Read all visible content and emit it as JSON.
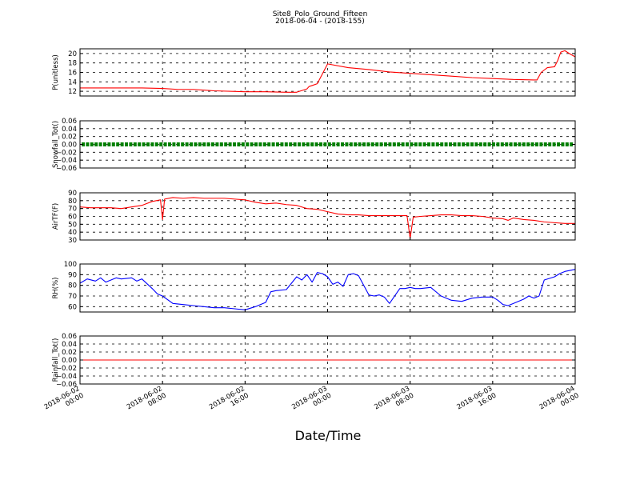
{
  "chart_data": {
    "type": "line",
    "title": "Site8_Polo_Ground_Fifteen",
    "subtitle": "2018-06-04 - (2018-155)",
    "xlabel": "Date/Time",
    "xlim_hours": [
      0,
      48
    ],
    "x_ticks": [
      {
        "line1": "2018-06-02",
        "line2": "00:00"
      },
      {
        "line1": "2018-06-02",
        "line2": "08:00"
      },
      {
        "line1": "2018-06-02",
        "line2": "16:00"
      },
      {
        "line1": "2018-06-03",
        "line2": "00:00"
      },
      {
        "line1": "2018-06-03",
        "line2": "08:00"
      },
      {
        "line1": "2018-06-03",
        "line2": "16:00"
      },
      {
        "line1": "2018-06-04",
        "line2": "00:00"
      }
    ],
    "panels": [
      {
        "id": "p",
        "ylabel": "P(unitless)",
        "ylim": [
          11,
          21
        ],
        "yticks": [
          12,
          14,
          16,
          18,
          20
        ],
        "ytick_labels": [
          "12",
          "14",
          "16",
          "18",
          "20"
        ],
        "color": "#ff0000",
        "marker": "none",
        "x": [
          0,
          3,
          6,
          8,
          9.5,
          11,
          13,
          16,
          18,
          20,
          21,
          22,
          22.2,
          22.6,
          23,
          24,
          26,
          28,
          30,
          32,
          34,
          36,
          38,
          40,
          42,
          44,
          44.3,
          44.7,
          45.3,
          46,
          46.3,
          46.6,
          47,
          47.5,
          48
        ],
        "y": [
          12.7,
          12.7,
          12.7,
          12.6,
          12.4,
          12.4,
          12.1,
          11.9,
          11.9,
          11.8,
          11.8,
          12.5,
          13.0,
          13.3,
          13.6,
          17.8,
          17.0,
          16.6,
          16.1,
          15.8,
          15.5,
          15.2,
          14.9,
          14.7,
          14.5,
          14.4,
          14.4,
          16.0,
          17.0,
          17.2,
          18.5,
          20.3,
          20.6,
          19.9,
          19.3
        ]
      },
      {
        "id": "snowfall",
        "ylabel": "Snowfall_Tot()",
        "ylim": [
          -0.06,
          0.06
        ],
        "yticks": [
          -0.06,
          -0.04,
          -0.02,
          0,
          0.02,
          0.04,
          0.06
        ],
        "ytick_labels": [
          "−0.06",
          "−0.04",
          "−0.02",
          "0.00",
          "0.02",
          "0.04",
          "0.06"
        ],
        "color": "#008000",
        "marker": "dots",
        "x": [
          0,
          48
        ],
        "y": [
          0,
          0
        ]
      },
      {
        "id": "airtf",
        "ylabel": "AirTF(F)",
        "ylim": [
          30,
          90
        ],
        "yticks": [
          30,
          40,
          50,
          60,
          70,
          80,
          90
        ],
        "ytick_labels": [
          "30",
          "40",
          "50",
          "60",
          "70",
          "80",
          "90"
        ],
        "color": "#ff0000",
        "marker": "none",
        "x": [
          0,
          1,
          2,
          3,
          4,
          5,
          6,
          7,
          7.8,
          8,
          8.2,
          9,
          10,
          11,
          12,
          13,
          14,
          15,
          16,
          17,
          18,
          19,
          20,
          21,
          22,
          23,
          24,
          25,
          26,
          27,
          28,
          29,
          30,
          31,
          31.7,
          32,
          32.3,
          33,
          34,
          35,
          36,
          37,
          38,
          39,
          40,
          41,
          41.5,
          42,
          43,
          44,
          45,
          46,
          47,
          48
        ],
        "y": [
          72,
          71,
          71,
          71,
          70,
          72,
          74,
          79,
          81,
          56,
          82,
          84,
          83,
          84,
          83,
          83,
          83,
          82,
          81,
          78,
          76,
          77,
          75,
          74,
          70,
          69,
          66,
          63,
          62,
          62,
          61,
          61,
          61,
          61,
          61,
          32,
          59,
          60,
          61,
          62,
          62,
          61,
          61,
          60,
          58,
          57,
          55,
          58,
          56,
          55,
          53,
          52,
          51,
          51
        ]
      },
      {
        "id": "rh",
        "ylabel": "RH(%)",
        "ylim": [
          55,
          100
        ],
        "yticks": [
          60,
          70,
          80,
          90,
          100
        ],
        "ytick_labels": [
          "60",
          "70",
          "80",
          "90",
          "100"
        ],
        "color": "#0000ff",
        "marker": "none",
        "x": [
          0,
          0.7,
          1.5,
          2,
          2.5,
          3,
          3.5,
          4,
          5,
          5.5,
          6,
          7,
          7.5,
          8,
          9,
          10,
          11,
          12,
          13,
          14,
          15,
          16,
          17,
          18,
          18.5,
          19,
          20,
          21,
          21.5,
          22,
          22.5,
          23,
          23.5,
          24,
          24.5,
          25,
          25.5,
          26,
          26.5,
          27,
          27.5,
          28,
          28.5,
          29,
          29.5,
          30,
          31,
          31.5,
          32,
          32.5,
          33,
          34,
          35,
          36,
          37,
          38,
          39,
          40,
          40.5,
          41,
          41.5,
          42,
          43,
          43.5,
          44,
          44.5,
          45,
          46,
          46.5,
          47,
          48
        ],
        "y": [
          82,
          86,
          84,
          87,
          83,
          85,
          87,
          86,
          87,
          84,
          86,
          77,
          72,
          70,
          63,
          62,
          61,
          60,
          59,
          59,
          58,
          57,
          60,
          64,
          74,
          75,
          76,
          88,
          85,
          90,
          83,
          92,
          91,
          88,
          81,
          83,
          79,
          90,
          91,
          89,
          80,
          71,
          70,
          71,
          69,
          63,
          77,
          77,
          78,
          77,
          77,
          78,
          70,
          66,
          65,
          68,
          69,
          69,
          66,
          62,
          61,
          63,
          67,
          70,
          68,
          70,
          85,
          88,
          91,
          93,
          95
        ]
      },
      {
        "id": "rainfall",
        "ylabel": "Rainfall_Tot()",
        "ylim": [
          -0.06,
          0.06
        ],
        "yticks": [
          -0.06,
          -0.04,
          -0.02,
          0,
          0.02,
          0.04,
          0.06
        ],
        "ytick_labels": [
          "−0.06",
          "−0.04",
          "−0.02",
          "0.00",
          "0.02",
          "0.04",
          "0.06"
        ],
        "color": "#ff0000",
        "marker": "none",
        "x": [
          0,
          48
        ],
        "y": [
          0,
          0
        ]
      }
    ],
    "grid": true,
    "legend": "none"
  }
}
